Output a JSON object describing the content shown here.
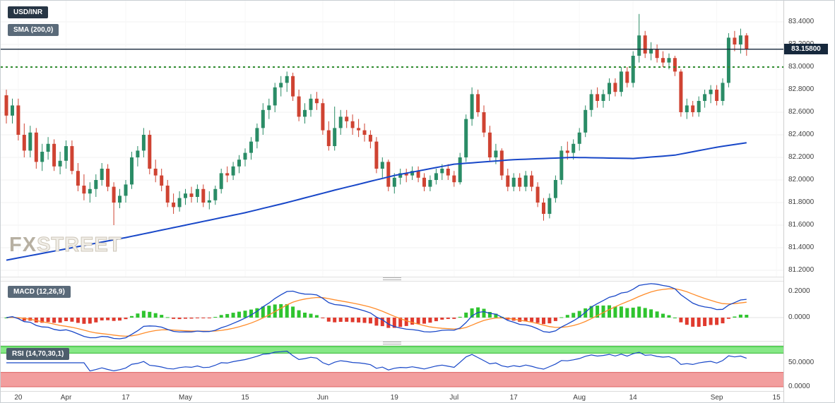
{
  "symbol_badge": "USD/INR",
  "overlays": {
    "sma_badge": "SMA (200,0)"
  },
  "indicators_legend": {
    "macd_badge": "MACD (12,26,9)",
    "rsi_badge": "RSI (14,70,30,1)"
  },
  "watermark": {
    "part1": "FX",
    "part2": "STREET"
  },
  "price_axis": {
    "labels": [
      "83.4000",
      "83.2000",
      "83.0000",
      "82.8000",
      "82.6000",
      "82.4000",
      "82.2000",
      "82.0000",
      "81.8000",
      "81.6000",
      "81.4000",
      "81.2000"
    ],
    "current_price_label": "83.15800"
  },
  "macd_axis": {
    "labels": [
      "0.2000",
      "0.0000"
    ]
  },
  "rsi_axis": {
    "labels": [
      "50.0000",
      "0.0000"
    ]
  },
  "time_axis": {
    "ticks": [
      [
        "20",
        2
      ],
      [
        "Apr",
        10
      ],
      [
        "17",
        20
      ],
      [
        "May",
        30
      ],
      [
        "15",
        40
      ],
      [
        "Jun",
        53
      ],
      [
        "19",
        65
      ],
      [
        "Jul",
        75
      ],
      [
        "17",
        85
      ],
      [
        "Aug",
        96
      ],
      [
        "14",
        105
      ],
      [
        "Sep",
        119
      ],
      [
        "15",
        129
      ]
    ]
  },
  "colors": {
    "candle_up": "#2a8c66",
    "candle_down": "#cf4332",
    "sma_line": "#1847c8",
    "macd_line": "#1847c8",
    "signal_line": "#ff8c2a",
    "hist_up": "#2fc42f",
    "hist_down": "#e03a2e",
    "rsi_line": "#1847c8",
    "rsi_upper_fill": "#87e887",
    "rsi_upper_edge": "#2db82d",
    "rsi_lower_fill": "#f29e9e",
    "rsi_lower_edge": "#dd6060",
    "level_line": "#16283c",
    "dotted_level": "#2e8b2e",
    "badge_dark": "#273645",
    "badge_gray": "#5a6a79"
  },
  "chart_data": {
    "type": "candlestick",
    "symbol": "USD/INR",
    "timeframe": "daily",
    "x_axis_tick_labels": [
      "20",
      "Apr",
      "17",
      "May",
      "15",
      "Jun",
      "19",
      "Jul",
      "17",
      "Aug",
      "14",
      "Sep",
      "15"
    ],
    "ylim": [
      81.2,
      83.45
    ],
    "last_price": 83.158,
    "horizontal_levels": [
      {
        "value": 83.158,
        "style": "solid",
        "color": "#16283c",
        "width": 1.4
      },
      {
        "value": 83.0,
        "style": "dotted",
        "color": "#2e8b2e",
        "width": 2
      }
    ],
    "overlay": {
      "name": "SMA",
      "period": 200
    },
    "sma200_anchors": [
      [
        0,
        81.29
      ],
      [
        10,
        81.39
      ],
      [
        20,
        81.49
      ],
      [
        30,
        81.6
      ],
      [
        40,
        81.71
      ],
      [
        47,
        81.8
      ],
      [
        55,
        81.91
      ],
      [
        65,
        82.04
      ],
      [
        75,
        82.14
      ],
      [
        85,
        82.18
      ],
      [
        95,
        82.2
      ],
      [
        105,
        82.19
      ],
      [
        112,
        82.22
      ],
      [
        119,
        82.29
      ],
      [
        124,
        82.33
      ]
    ],
    "indicators": {
      "macd": {
        "fast": 12,
        "slow": 26,
        "signal": 9,
        "axis_range": [
          -0.178,
          0.276
        ]
      },
      "rsi": {
        "period": 14,
        "overbought": 70,
        "oversold": 30,
        "axis_range": [
          0,
          100
        ]
      }
    },
    "candles_ohlc": [
      [
        82.75,
        82.8,
        82.5,
        82.57
      ],
      [
        82.57,
        82.72,
        82.5,
        82.66
      ],
      [
        82.66,
        82.72,
        82.35,
        82.4
      ],
      [
        82.4,
        82.5,
        82.2,
        82.26
      ],
      [
        82.26,
        82.48,
        82.2,
        82.42
      ],
      [
        82.42,
        82.46,
        82.1,
        82.16
      ],
      [
        82.16,
        82.32,
        82.08,
        82.25
      ],
      [
        82.25,
        82.38,
        82.18,
        82.32
      ],
      [
        82.32,
        82.36,
        82.08,
        82.12
      ],
      [
        82.12,
        82.25,
        82.05,
        82.17
      ],
      [
        82.17,
        82.35,
        82.1,
        82.3
      ],
      [
        82.3,
        82.35,
        82.05,
        82.08
      ],
      [
        82.08,
        82.15,
        81.9,
        81.95
      ],
      [
        81.95,
        82.05,
        81.82,
        81.88
      ],
      [
        81.88,
        81.98,
        81.8,
        81.92
      ],
      [
        81.92,
        82.05,
        81.85,
        82.0
      ],
      [
        82.0,
        82.15,
        81.95,
        82.1
      ],
      [
        82.1,
        82.14,
        81.9,
        81.94
      ],
      [
        81.94,
        81.98,
        81.6,
        81.8
      ],
      [
        81.8,
        81.92,
        81.75,
        81.86
      ],
      [
        81.86,
        82.0,
        81.8,
        81.96
      ],
      [
        81.96,
        82.25,
        81.92,
        82.2
      ],
      [
        82.2,
        82.3,
        82.12,
        82.26
      ],
      [
        82.26,
        82.46,
        82.2,
        82.4
      ],
      [
        82.4,
        82.44,
        82.05,
        82.1
      ],
      [
        82.1,
        82.18,
        81.98,
        82.04
      ],
      [
        82.04,
        82.1,
        81.9,
        81.95
      ],
      [
        81.95,
        82.0,
        81.76,
        81.8
      ],
      [
        81.8,
        81.88,
        81.7,
        81.76
      ],
      [
        81.76,
        81.9,
        81.72,
        81.84
      ],
      [
        81.84,
        81.92,
        81.78,
        81.88
      ],
      [
        81.88,
        81.94,
        81.8,
        81.85
      ],
      [
        81.85,
        81.96,
        81.8,
        81.92
      ],
      [
        81.92,
        81.96,
        81.76,
        81.8
      ],
      [
        81.8,
        81.9,
        81.74,
        81.82
      ],
      [
        81.82,
        81.95,
        81.78,
        81.92
      ],
      [
        81.92,
        82.1,
        81.88,
        82.06
      ],
      [
        82.06,
        82.12,
        81.98,
        82.04
      ],
      [
        82.04,
        82.16,
        82.0,
        82.12
      ],
      [
        82.12,
        82.22,
        82.06,
        82.18
      ],
      [
        82.18,
        82.28,
        82.12,
        82.24
      ],
      [
        82.24,
        82.38,
        82.18,
        82.34
      ],
      [
        82.34,
        82.5,
        82.28,
        82.46
      ],
      [
        82.46,
        82.68,
        82.4,
        82.62
      ],
      [
        82.62,
        82.72,
        82.54,
        82.66
      ],
      [
        82.66,
        82.86,
        82.6,
        82.82
      ],
      [
        82.82,
        82.92,
        82.74,
        82.86
      ],
      [
        82.86,
        82.96,
        82.78,
        82.92
      ],
      [
        82.92,
        82.95,
        82.7,
        82.74
      ],
      [
        82.74,
        82.8,
        82.52,
        82.56
      ],
      [
        82.56,
        82.68,
        82.5,
        82.62
      ],
      [
        82.62,
        82.76,
        82.56,
        82.72
      ],
      [
        82.72,
        82.78,
        82.62,
        82.68
      ],
      [
        82.68,
        82.72,
        82.4,
        82.44
      ],
      [
        82.44,
        82.52,
        82.26,
        82.3
      ],
      [
        82.3,
        82.65,
        82.26,
        82.46
      ],
      [
        82.46,
        82.62,
        82.4,
        82.56
      ],
      [
        82.56,
        82.62,
        82.46,
        82.52
      ],
      [
        82.52,
        82.58,
        82.4,
        82.46
      ],
      [
        82.46,
        82.54,
        82.38,
        82.44
      ],
      [
        82.44,
        82.5,
        82.34,
        82.4
      ],
      [
        82.4,
        82.44,
        82.28,
        82.34
      ],
      [
        82.34,
        82.38,
        82.06,
        82.1
      ],
      [
        82.1,
        82.2,
        82.02,
        82.16
      ],
      [
        82.16,
        82.18,
        81.9,
        81.94
      ],
      [
        81.94,
        82.06,
        81.88,
        82.02
      ],
      [
        82.02,
        82.1,
        81.96,
        82.06
      ],
      [
        82.06,
        82.1,
        81.98,
        82.04
      ],
      [
        82.04,
        82.12,
        82.0,
        82.08
      ],
      [
        82.08,
        82.12,
        81.98,
        82.02
      ],
      [
        82.02,
        82.06,
        81.9,
        81.94
      ],
      [
        81.94,
        82.04,
        81.9,
        82.0
      ],
      [
        82.0,
        82.1,
        81.96,
        82.06
      ],
      [
        82.06,
        82.14,
        82.0,
        82.1
      ],
      [
        82.1,
        82.14,
        82.0,
        82.04
      ],
      [
        82.04,
        82.08,
        81.94,
        81.98
      ],
      [
        81.98,
        82.24,
        81.96,
        82.2
      ],
      [
        82.2,
        82.58,
        82.16,
        82.54
      ],
      [
        82.54,
        82.82,
        82.48,
        82.76
      ],
      [
        82.76,
        82.8,
        82.56,
        82.6
      ],
      [
        82.6,
        82.66,
        82.38,
        82.42
      ],
      [
        82.42,
        82.48,
        82.16,
        82.2
      ],
      [
        82.2,
        82.32,
        82.14,
        82.26
      ],
      [
        82.26,
        82.28,
        82.0,
        82.04
      ],
      [
        82.04,
        82.1,
        81.9,
        81.94
      ],
      [
        81.94,
        82.06,
        81.9,
        82.02
      ],
      [
        82.02,
        82.06,
        81.9,
        81.94
      ],
      [
        81.94,
        82.08,
        81.9,
        82.04
      ],
      [
        82.04,
        82.08,
        81.9,
        81.94
      ],
      [
        81.94,
        81.98,
        81.76,
        81.8
      ],
      [
        81.8,
        81.84,
        81.64,
        81.7
      ],
      [
        81.7,
        81.88,
        81.66,
        81.84
      ],
      [
        81.84,
        82.04,
        81.8,
        82.0
      ],
      [
        82.0,
        82.3,
        81.96,
        82.26
      ],
      [
        82.26,
        82.34,
        82.18,
        82.24
      ],
      [
        82.24,
        82.36,
        82.18,
        82.32
      ],
      [
        82.32,
        82.46,
        82.26,
        82.42
      ],
      [
        82.42,
        82.66,
        82.38,
        82.62
      ],
      [
        82.62,
        82.8,
        82.56,
        82.76
      ],
      [
        82.76,
        82.82,
        82.64,
        82.7
      ],
      [
        82.7,
        82.8,
        82.64,
        82.76
      ],
      [
        82.76,
        82.9,
        82.7,
        82.86
      ],
      [
        82.86,
        82.9,
        82.74,
        82.78
      ],
      [
        82.78,
        83.0,
        82.74,
        82.96
      ],
      [
        82.96,
        83.0,
        82.82,
        82.86
      ],
      [
        82.86,
        83.14,
        82.82,
        83.1
      ],
      [
        83.1,
        83.47,
        83.04,
        83.28
      ],
      [
        83.28,
        83.32,
        83.08,
        83.12
      ],
      [
        83.12,
        83.22,
        83.06,
        83.16
      ],
      [
        83.16,
        83.2,
        83.04,
        83.08
      ],
      [
        83.08,
        83.14,
        83.0,
        83.04
      ],
      [
        83.04,
        83.12,
        82.98,
        83.08
      ],
      [
        83.08,
        83.1,
        82.92,
        82.96
      ],
      [
        82.96,
        82.98,
        82.56,
        82.6
      ],
      [
        82.6,
        82.72,
        82.54,
        82.66
      ],
      [
        82.66,
        82.7,
        82.56,
        82.6
      ],
      [
        82.6,
        82.74,
        82.56,
        82.7
      ],
      [
        82.7,
        82.8,
        82.64,
        82.76
      ],
      [
        82.76,
        82.84,
        82.68,
        82.8
      ],
      [
        82.8,
        82.84,
        82.66,
        82.7
      ],
      [
        82.7,
        82.9,
        82.66,
        82.86
      ],
      [
        82.86,
        83.3,
        82.82,
        83.26
      ],
      [
        83.26,
        83.32,
        83.14,
        83.2
      ],
      [
        83.2,
        83.34,
        83.12,
        83.28
      ],
      [
        83.28,
        83.3,
        83.1,
        83.158
      ]
    ]
  }
}
